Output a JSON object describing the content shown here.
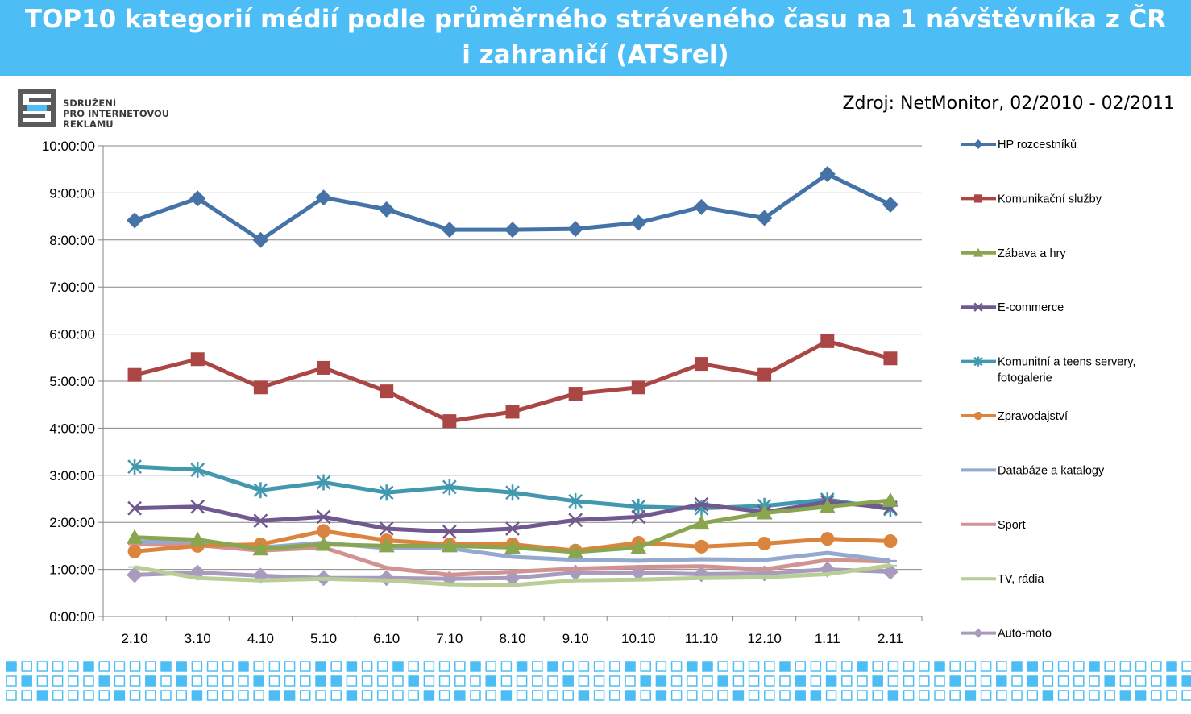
{
  "header": {
    "title_line1": "TOP10 kategorií médií podle průměrného stráveného času na 1 návštěvníka z ČR",
    "title_line2": "i zahraničí (ATSrel)"
  },
  "logo": {
    "line1": "SDRUŽENÍ",
    "line2": "PRO INTERNETOVOU",
    "line3": "REKLAMU"
  },
  "source": "Zdroj: NetMonitor, 02/2010 - 02/2011",
  "colors": {
    "header_bg": "#4dbdf5",
    "pattern_fill": "#4dbdf5",
    "pattern_stroke": "#4dbdf5"
  },
  "chart_data": {
    "type": "line",
    "categories": [
      "2.10",
      "3.10",
      "4.10",
      "5.10",
      "6.10",
      "7.10",
      "8.10",
      "9.10",
      "10.10",
      "11.10",
      "12.10",
      "1.11",
      "2.11"
    ],
    "y_ticks": [
      "0:00:00",
      "1:00:00",
      "2:00:00",
      "3:00:00",
      "4:00:00",
      "5:00:00",
      "6:00:00",
      "7:00:00",
      "8:00:00",
      "9:00:00",
      "10:00:00"
    ],
    "ylim_minutes": [
      0,
      600
    ],
    "y_unit": "minutes",
    "grid": true,
    "legend_position": "right",
    "series": [
      {
        "name": "HP rozcestníků",
        "color": "#4573a7",
        "marker": "diamond",
        "values": [
          505,
          533,
          480,
          534,
          519,
          493,
          493,
          494,
          502,
          522,
          508,
          564,
          525
        ]
      },
      {
        "name": "Komunikační služby",
        "color": "#aa4643",
        "marker": "square",
        "values": [
          308,
          328,
          292,
          317,
          287,
          249,
          261,
          284,
          292,
          322,
          308,
          351,
          329
        ]
      },
      {
        "name": "Zábava a hry",
        "color": "#89a54e",
        "marker": "triangle",
        "values": [
          101,
          98,
          86,
          92,
          90,
          90,
          88,
          82,
          88,
          119,
          132,
          140,
          148
        ]
      },
      {
        "name": "E-commerce",
        "color": "#71588f",
        "marker": "x",
        "values": [
          138,
          140,
          122,
          127,
          112,
          108,
          112,
          123,
          127,
          143,
          133,
          146,
          139
        ]
      },
      {
        "name": "Komunitní a teens servery, fotogalerie",
        "color": "#4198af",
        "marker": "star",
        "values": [
          191,
          187,
          161,
          171,
          158,
          165,
          158,
          147,
          140,
          138,
          141,
          149,
          137
        ]
      },
      {
        "name": "Zpravodajství",
        "color": "#db843d",
        "marker": "circle",
        "values": [
          83,
          90,
          92,
          109,
          97,
          92,
          92,
          84,
          94,
          89,
          93,
          99,
          96
        ]
      },
      {
        "name": "Databáze a katalogy",
        "color": "#93a9cf",
        "marker": "dash",
        "values": [
          95,
          96,
          88,
          94,
          87,
          87,
          76,
          72,
          71,
          73,
          72,
          81,
          71
        ]
      },
      {
        "name": "Sport",
        "color": "#d19392",
        "marker": "dash",
        "values": [
          92,
          91,
          84,
          88,
          62,
          53,
          57,
          61,
          63,
          64,
          60,
          72,
          70
        ]
      },
      {
        "name": "TV, rádia",
        "color": "#b9cd96",
        "marker": "dash",
        "values": [
          63,
          49,
          46,
          48,
          46,
          41,
          40,
          46,
          47,
          49,
          50,
          54,
          65
        ]
      },
      {
        "name": "Auto-moto",
        "color": "#a99bbd",
        "marker": "diamond",
        "values": [
          53,
          56,
          52,
          49,
          49,
          48,
          49,
          56,
          56,
          54,
          55,
          60,
          57
        ]
      }
    ]
  }
}
